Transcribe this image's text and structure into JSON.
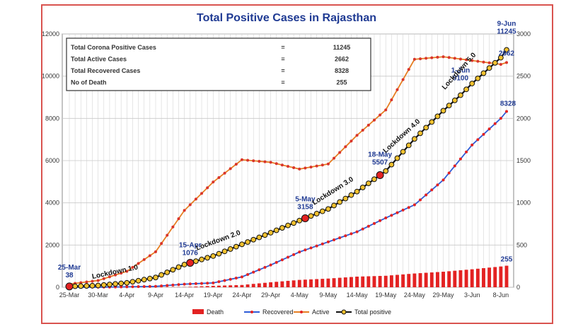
{
  "chart_data": {
    "type": "line",
    "title": "Total Positive Cases in Rajasthan",
    "x_tick_labels": [
      "25-Mar",
      "30-Mar",
      "4-Apr",
      "9-Apr",
      "14-Apr",
      "19-Apr",
      "24-Apr",
      "29-Apr",
      "4-May",
      "9-May",
      "14-May",
      "19-May",
      "24-May",
      "29-May",
      "3-Jun",
      "8-Jun"
    ],
    "ylim_left": [
      0,
      12000
    ],
    "yticks_left": [
      0,
      2000,
      4000,
      6000,
      8000,
      10000,
      12000
    ],
    "ylim_right": [
      0,
      3000
    ],
    "yticks_right": [
      0,
      500,
      1000,
      1500,
      2000,
      2500,
      3000
    ],
    "series": [
      {
        "name": "Total positive",
        "color": "#f2c12e",
        "axis": "left",
        "x": [
          "25-Mar",
          "30-Mar",
          "4-Apr",
          "9-Apr",
          "14-Apr",
          "19-Apr",
          "24-Apr",
          "29-Apr",
          "4-May",
          "9-May",
          "14-May",
          "19-May",
          "24-May",
          "29-May",
          "1-Jun",
          "3-Jun",
          "8-Jun",
          "9-Jun"
        ],
        "values": [
          38,
          83,
          210,
          463,
          1076,
          1478,
          2034,
          2584,
          3158,
          3708,
          4534,
          5507,
          7028,
          8365,
          9100,
          9652,
          10876,
          11245
        ]
      },
      {
        "name": "Recovered",
        "color": "#2e5bd6",
        "axis": "left",
        "x": [
          "25-Mar",
          "30-Mar",
          "4-Apr",
          "9-Apr",
          "14-Apr",
          "19-Apr",
          "24-Apr",
          "29-Apr",
          "4-May",
          "9-May",
          "14-May",
          "19-May",
          "24-May",
          "29-May",
          "3-Jun",
          "8-Jun",
          "9-Jun"
        ],
        "values": [
          0,
          3,
          21,
          40,
          147,
          205,
          491,
          1054,
          1671,
          2150,
          2629,
          3284,
          3904,
          5083,
          6742,
          8002,
          8328
        ]
      },
      {
        "name": "Active",
        "color": "#e67e22",
        "axis": "right",
        "x": [
          "25-Mar",
          "30-Mar",
          "4-Apr",
          "9-Apr",
          "14-Apr",
          "19-Apr",
          "24-Apr",
          "29-Apr",
          "4-May",
          "9-May",
          "14-May",
          "19-May",
          "24-May",
          "29-May",
          "3-Jun",
          "8-Jun",
          "9-Jun"
        ],
        "values": [
          38,
          80,
          189,
          420,
          910,
          1246,
          1510,
          1480,
          1400,
          1460,
          1800,
          2100,
          2700,
          2730,
          2685,
          2640,
          2662
        ]
      },
      {
        "name": "Death",
        "color": "#e32222",
        "axis": "right",
        "x": [
          "25-Mar",
          "30-Mar",
          "4-Apr",
          "9-Apr",
          "14-Apr",
          "19-Apr",
          "24-Apr",
          "29-Apr",
          "4-May",
          "9-May",
          "14-May",
          "19-May",
          "24-May",
          "29-May",
          "3-Jun",
          "8-Jun",
          "9-Jun"
        ],
        "values": [
          0,
          0,
          0,
          2,
          3,
          17,
          27,
          59,
          87,
          103,
          126,
          136,
          163,
          184,
          213,
          246,
          255
        ]
      }
    ],
    "stats_box": [
      {
        "label": "Total Corona Positive Cases",
        "sep": "=",
        "value": "11245"
      },
      {
        "label": "Total Active Cases",
        "sep": "=",
        "value": "2662"
      },
      {
        "label": "Total Recovered Cases",
        "sep": "=",
        "value": "8328"
      },
      {
        "label": "No of Death",
        "sep": "=",
        "value": "255"
      }
    ],
    "milestones": [
      {
        "date": "25-Mar",
        "value": "38"
      },
      {
        "date": "15-Apr",
        "value": "1076"
      },
      {
        "date": "5-May",
        "value": "3158"
      },
      {
        "date": "18-May",
        "value": "5507"
      },
      {
        "date": "1-Jun",
        "value": "9100"
      },
      {
        "date": "9-Jun",
        "value": "11245"
      }
    ],
    "lockdown_labels": [
      "Lockdown 1.0",
      "Lockdown 2.0",
      "Lockdown 3.0",
      "Lockdown 4.0",
      "Lockdown 5.0"
    ],
    "end_labels": {
      "recovered": "8328",
      "active": "2662",
      "death": "255"
    },
    "legend": [
      "Death",
      "Recovered",
      "Active",
      "Total positive"
    ],
    "grid": true,
    "legend_position": "bottom"
  }
}
